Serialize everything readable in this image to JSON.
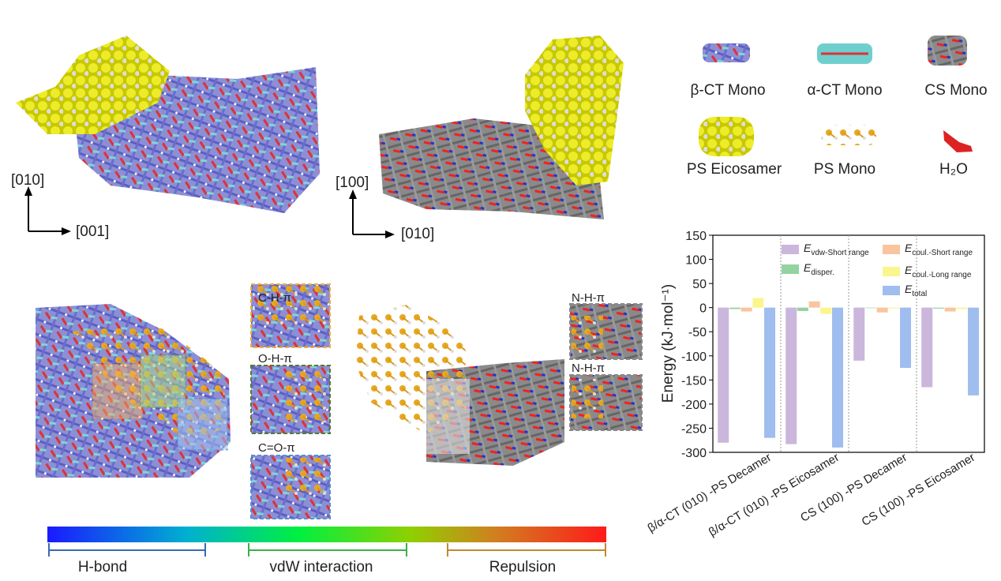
{
  "view_axes": [
    {
      "vertical": "[010]",
      "horizontal": "[001]"
    },
    {
      "vertical": "[100]",
      "horizontal": "[010]"
    }
  ],
  "molecule_legend": [
    "β-CT Mono",
    "α-CT Mono",
    "CS Mono",
    "PS Eicosamer",
    "PS Mono",
    "H₂O"
  ],
  "interactions": [
    "C-H-π",
    "O-H-π",
    "C=O-π",
    "N-H-π",
    "N-H-π"
  ],
  "colorbar": {
    "labels": [
      "H-bond",
      "vdW interaction",
      "Repulsion"
    ]
  },
  "chart_data": {
    "type": "bar",
    "y_label": "Energy (kJ·mol⁻¹)",
    "categories": [
      "β/α-CT (010) -PS Decamer",
      "β/α-CT (010) -PS Eicosamer",
      "CS (100) -PS Decamer",
      "CS (100) -PS Eicosamer"
    ],
    "series": [
      {
        "name": "Evdw-Short range",
        "color": "#cbb6dc",
        "values": [
          -280,
          -283,
          -110,
          -165
        ]
      },
      {
        "name": "Edisper.",
        "color": "#92d3a0",
        "values": [
          -3,
          -7,
          -1,
          -2
        ]
      },
      {
        "name": "Ecoul.-Short range",
        "color": "#f8c59f",
        "values": [
          -8,
          13,
          -10,
          -8
        ]
      },
      {
        "name": "Ecoul.-Long range",
        "color": "#fbf58e",
        "values": [
          20,
          -13,
          -2,
          -3
        ]
      },
      {
        "name": "Etotal",
        "color": "#9fbdee",
        "values": [
          -270,
          -290,
          -125,
          -182
        ]
      }
    ],
    "ylim": [
      -300,
      150
    ],
    "yticks": [
      -300,
      -250,
      -200,
      -150,
      -100,
      -50,
      0,
      50,
      100,
      150
    ],
    "grid": false
  }
}
